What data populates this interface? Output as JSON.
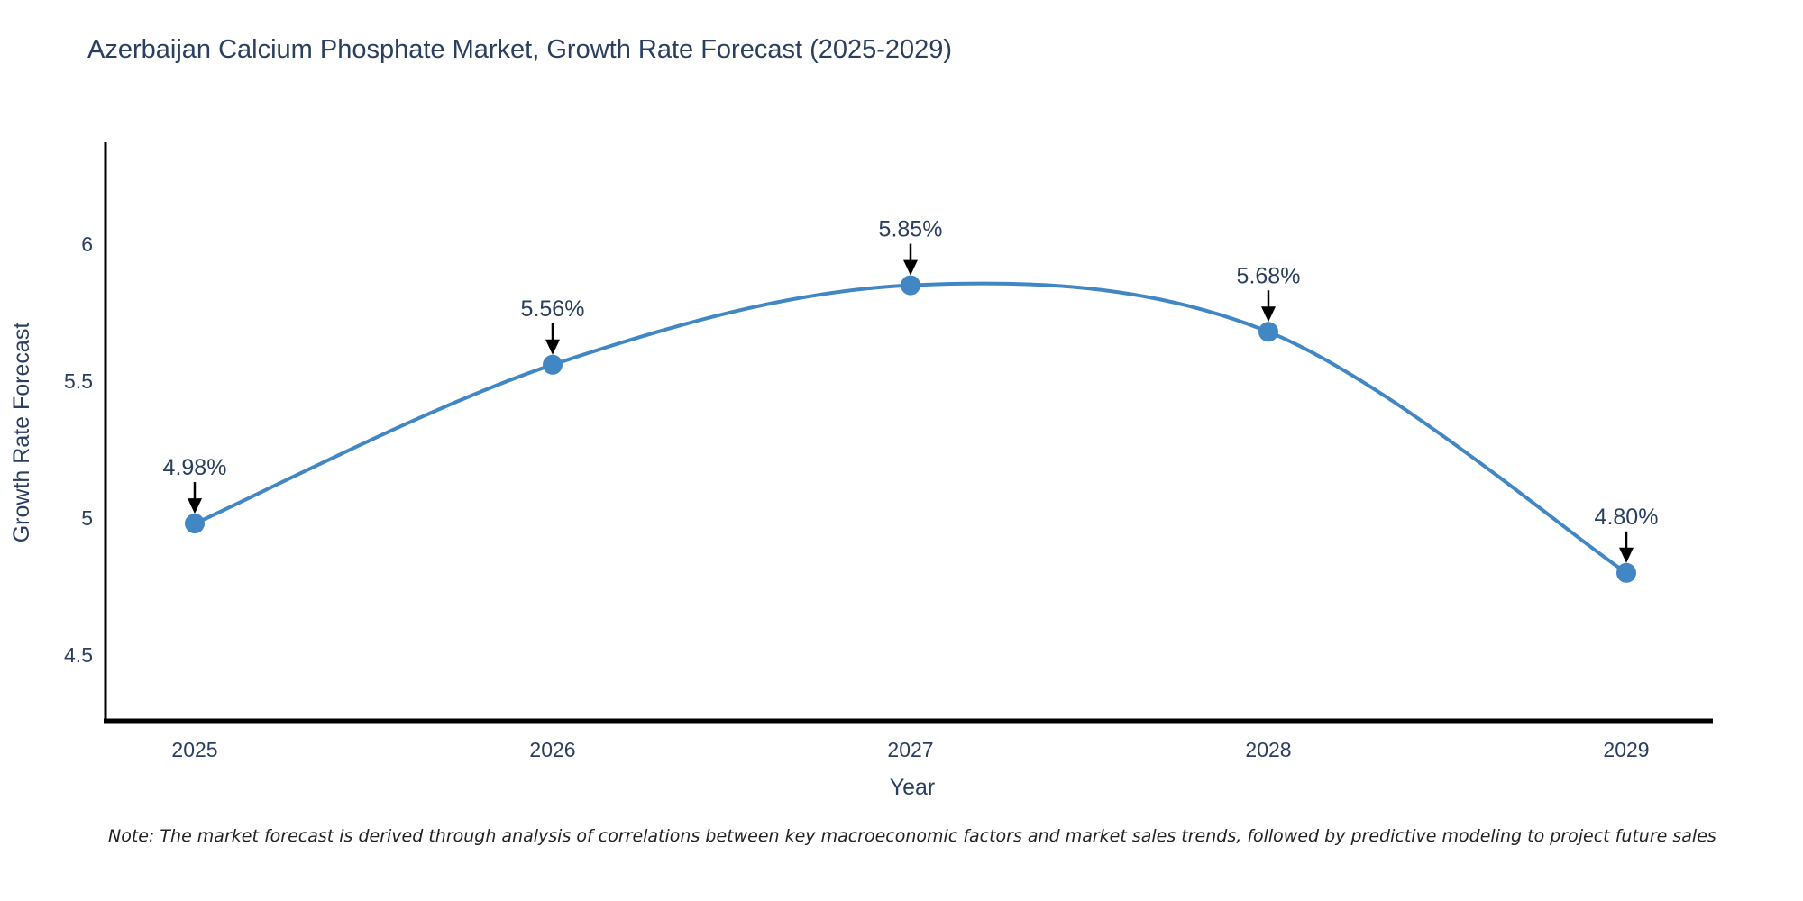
{
  "chart_data": {
    "type": "line",
    "line_shape": "spline",
    "title": "Azerbaijan Calcium Phosphate Market, Growth Rate Forecast (2025-2029)",
    "xlabel": "Year",
    "ylabel": "Growth Rate Forecast",
    "categories": [
      "2025",
      "2026",
      "2027",
      "2028",
      "2029"
    ],
    "values": [
      4.98,
      5.56,
      5.85,
      5.68,
      4.8
    ],
    "data_labels": [
      "4.98%",
      "5.56%",
      "5.85%",
      "5.68%",
      "4.80%"
    ],
    "y_ticks": [
      4.5,
      5,
      5.5,
      6
    ],
    "y_tick_labels": [
      "4.5",
      "5",
      "5.5",
      "6"
    ],
    "ylim": [
      4.26,
      6.37
    ],
    "grid": false,
    "legend": "none",
    "colors": {
      "line": "#4187c3",
      "marker": "#4187c3",
      "axis": "#000000",
      "text": "#2a3f5f",
      "annotation_arrow": "#000000"
    }
  },
  "note": "Note: The market forecast is derived through analysis of correlations between key macroeconomic factors and market sales trends, followed by predictive modeling to project future sales"
}
